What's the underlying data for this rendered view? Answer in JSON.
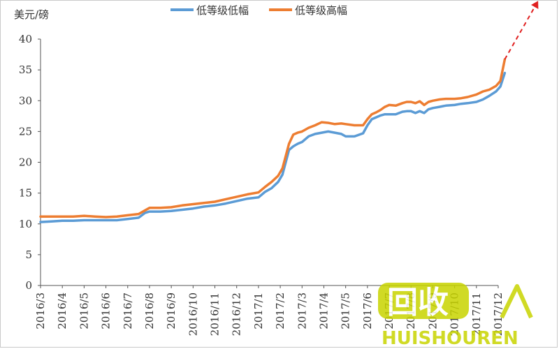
{
  "chart_data": {
    "type": "line",
    "ylabel": "美元/磅",
    "ylim": [
      0,
      40
    ],
    "yticks": [
      0,
      5,
      10,
      15,
      20,
      25,
      30,
      35,
      40
    ],
    "categories": [
      "2016/3",
      "2016/4",
      "2016/5",
      "2016/6",
      "2016/7",
      "2016/8",
      "2016/9",
      "2016/10",
      "2016/11",
      "2016/12",
      "2017/1",
      "2017/2",
      "2017/3",
      "2017/4",
      "2017/5",
      "2017/6",
      "2017/7",
      "2017/8",
      "2017/9",
      "2017/10",
      "2017/11",
      "2017/12"
    ],
    "legend_position": "top",
    "grid": false,
    "series": [
      {
        "name": "低等级低幅",
        "color": "#5b9bd5",
        "points": [
          [
            0,
            10.3
          ],
          [
            0.5,
            10.4
          ],
          [
            1,
            10.5
          ],
          [
            1.5,
            10.5
          ],
          [
            2,
            10.6
          ],
          [
            2.5,
            10.6
          ],
          [
            3,
            10.6
          ],
          [
            3.5,
            10.6
          ],
          [
            4,
            10.8
          ],
          [
            4.5,
            11.0
          ],
          [
            4.8,
            11.8
          ],
          [
            5,
            12.0
          ],
          [
            5.5,
            12.0
          ],
          [
            6,
            12.1
          ],
          [
            6.5,
            12.3
          ],
          [
            7,
            12.5
          ],
          [
            7.5,
            12.8
          ],
          [
            8,
            13.0
          ],
          [
            8.5,
            13.3
          ],
          [
            9,
            13.7
          ],
          [
            9.5,
            14.1
          ],
          [
            10,
            14.3
          ],
          [
            10.3,
            15.2
          ],
          [
            10.6,
            15.8
          ],
          [
            10.9,
            16.8
          ],
          [
            11.1,
            18.0
          ],
          [
            11.25,
            20.0
          ],
          [
            11.4,
            22.0
          ],
          [
            11.6,
            22.6
          ],
          [
            11.8,
            23.0
          ],
          [
            12,
            23.3
          ],
          [
            12.3,
            24.2
          ],
          [
            12.6,
            24.6
          ],
          [
            12.9,
            24.8
          ],
          [
            13.2,
            25.0
          ],
          [
            13.5,
            24.8
          ],
          [
            13.8,
            24.6
          ],
          [
            14,
            24.2
          ],
          [
            14.4,
            24.2
          ],
          [
            14.8,
            24.7
          ],
          [
            15,
            26.0
          ],
          [
            15.2,
            27.0
          ],
          [
            15.4,
            27.3
          ],
          [
            15.6,
            27.6
          ],
          [
            15.8,
            27.8
          ],
          [
            16,
            27.8
          ],
          [
            16.3,
            27.8
          ],
          [
            16.6,
            28.2
          ],
          [
            16.8,
            28.3
          ],
          [
            17,
            28.3
          ],
          [
            17.2,
            28.0
          ],
          [
            17.4,
            28.3
          ],
          [
            17.6,
            28.0
          ],
          [
            17.8,
            28.6
          ],
          [
            18,
            28.8
          ],
          [
            18.3,
            29.0
          ],
          [
            18.6,
            29.2
          ],
          [
            19,
            29.3
          ],
          [
            19.3,
            29.5
          ],
          [
            19.6,
            29.6
          ],
          [
            20,
            29.8
          ],
          [
            20.3,
            30.2
          ],
          [
            20.6,
            30.8
          ],
          [
            20.9,
            31.5
          ],
          [
            21.1,
            32.3
          ],
          [
            21.3,
            34.5
          ]
        ]
      },
      {
        "name": "低等级高幅",
        "color": "#ed7d31",
        "points": [
          [
            0,
            11.2
          ],
          [
            0.5,
            11.2
          ],
          [
            1,
            11.2
          ],
          [
            1.5,
            11.2
          ],
          [
            2,
            11.3
          ],
          [
            2.5,
            11.2
          ],
          [
            3,
            11.1
          ],
          [
            3.5,
            11.2
          ],
          [
            4,
            11.4
          ],
          [
            4.5,
            11.6
          ],
          [
            4.8,
            12.2
          ],
          [
            5,
            12.6
          ],
          [
            5.5,
            12.6
          ],
          [
            6,
            12.7
          ],
          [
            6.5,
            13.0
          ],
          [
            7,
            13.2
          ],
          [
            7.5,
            13.4
          ],
          [
            8,
            13.6
          ],
          [
            8.5,
            14.0
          ],
          [
            9,
            14.4
          ],
          [
            9.5,
            14.8
          ],
          [
            10,
            15.1
          ],
          [
            10.3,
            16.0
          ],
          [
            10.6,
            16.8
          ],
          [
            10.9,
            17.8
          ],
          [
            11.1,
            19.0
          ],
          [
            11.25,
            21.0
          ],
          [
            11.4,
            23.0
          ],
          [
            11.6,
            24.5
          ],
          [
            11.8,
            24.8
          ],
          [
            12,
            25.0
          ],
          [
            12.3,
            25.6
          ],
          [
            12.6,
            26.0
          ],
          [
            12.9,
            26.5
          ],
          [
            13.2,
            26.4
          ],
          [
            13.5,
            26.2
          ],
          [
            13.8,
            26.3
          ],
          [
            14,
            26.2
          ],
          [
            14.4,
            26.0
          ],
          [
            14.8,
            26.0
          ],
          [
            15,
            27.0
          ],
          [
            15.2,
            27.8
          ],
          [
            15.4,
            28.1
          ],
          [
            15.6,
            28.5
          ],
          [
            15.8,
            29.0
          ],
          [
            16,
            29.3
          ],
          [
            16.3,
            29.2
          ],
          [
            16.6,
            29.6
          ],
          [
            16.8,
            29.8
          ],
          [
            17,
            29.8
          ],
          [
            17.2,
            29.6
          ],
          [
            17.4,
            29.9
          ],
          [
            17.6,
            29.3
          ],
          [
            17.8,
            29.8
          ],
          [
            18,
            30.0
          ],
          [
            18.3,
            30.2
          ],
          [
            18.6,
            30.3
          ],
          [
            19,
            30.3
          ],
          [
            19.3,
            30.4
          ],
          [
            19.6,
            30.6
          ],
          [
            20,
            31.0
          ],
          [
            20.3,
            31.5
          ],
          [
            20.6,
            31.8
          ],
          [
            20.9,
            32.4
          ],
          [
            21.1,
            33.2
          ],
          [
            21.3,
            36.7
          ]
        ]
      }
    ],
    "trend_arrow": {
      "color": "#e02020",
      "from": [
        21.3,
        36.7
      ],
      "to": [
        22.8,
        46.0
      ]
    }
  },
  "watermark": {
    "main": "回收",
    "sub": "HUISHOUREN",
    "color": "#c8d400"
  }
}
